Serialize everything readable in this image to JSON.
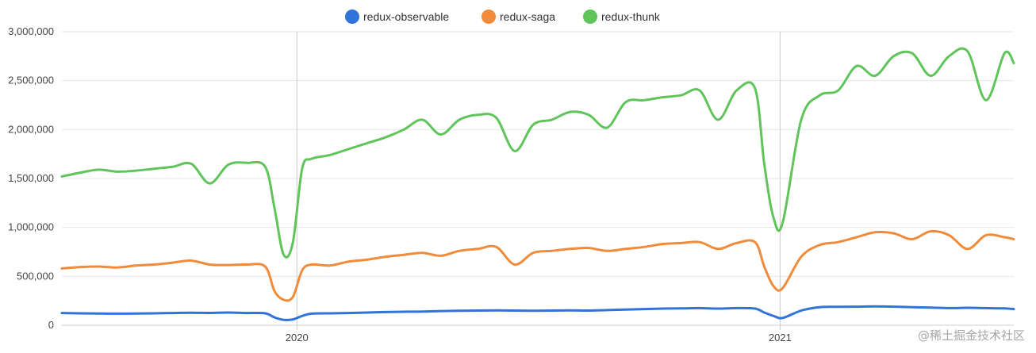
{
  "chart_data": {
    "type": "line",
    "title": "",
    "xlabel": "",
    "ylabel": "",
    "ylim": [
      0,
      3000000
    ],
    "yticks": [
      0,
      500000,
      1000000,
      1500000,
      2000000,
      2500000,
      3000000
    ],
    "ytick_labels": [
      "0",
      "500,000",
      "1,000,000",
      "1,500,000",
      "2,000,000",
      "2,500,000",
      "3,000,000"
    ],
    "xlim": [
      "2019-07-07",
      "2021-06-27"
    ],
    "xticks": [
      {
        "date": "2020-01-01",
        "label": "2020"
      },
      {
        "date": "2021-01-01",
        "label": "2021"
      }
    ],
    "grid": true,
    "legend_position": "top-center",
    "x": [
      "2019-07-07",
      "2019-07-21",
      "2019-08-04",
      "2019-08-18",
      "2019-09-01",
      "2019-09-15",
      "2019-09-29",
      "2019-10-13",
      "2019-10-27",
      "2019-11-10",
      "2019-11-24",
      "2019-12-08",
      "2019-12-15",
      "2019-12-22",
      "2019-12-29",
      "2020-01-05",
      "2020-01-12",
      "2020-01-26",
      "2020-02-09",
      "2020-02-23",
      "2020-03-08",
      "2020-03-22",
      "2020-04-05",
      "2020-04-19",
      "2020-05-03",
      "2020-05-17",
      "2020-05-31",
      "2020-06-14",
      "2020-06-28",
      "2020-07-12",
      "2020-07-26",
      "2020-08-09",
      "2020-08-23",
      "2020-09-06",
      "2020-09-20",
      "2020-10-04",
      "2020-10-18",
      "2020-11-01",
      "2020-11-15",
      "2020-11-29",
      "2020-12-13",
      "2020-12-20",
      "2020-12-27",
      "2021-01-03",
      "2021-01-17",
      "2021-01-31",
      "2021-02-14",
      "2021-02-28",
      "2021-03-14",
      "2021-03-28",
      "2021-04-11",
      "2021-04-25",
      "2021-05-09",
      "2021-05-23",
      "2021-06-06",
      "2021-06-20",
      "2021-06-27"
    ],
    "series": [
      {
        "name": "redux-observable",
        "color": "#3074d9",
        "values": [
          125000,
          122000,
          120000,
          118000,
          120000,
          122000,
          125000,
          128000,
          126000,
          130000,
          125000,
          122000,
          80000,
          55000,
          60000,
          95000,
          118000,
          122000,
          125000,
          130000,
          135000,
          138000,
          140000,
          145000,
          148000,
          150000,
          152000,
          150000,
          148000,
          150000,
          152000,
          150000,
          155000,
          160000,
          165000,
          170000,
          172000,
          175000,
          170000,
          175000,
          170000,
          130000,
          95000,
          75000,
          150000,
          185000,
          188000,
          190000,
          192000,
          190000,
          185000,
          180000,
          175000,
          178000,
          175000,
          172000,
          165000
        ]
      },
      {
        "name": "redux-saga",
        "color": "#ef8b3a",
        "values": [
          580000,
          595000,
          600000,
          590000,
          610000,
          620000,
          640000,
          660000,
          620000,
          615000,
          620000,
          600000,
          350000,
          260000,
          290000,
          560000,
          620000,
          610000,
          650000,
          670000,
          700000,
          720000,
          740000,
          710000,
          760000,
          780000,
          800000,
          620000,
          740000,
          760000,
          780000,
          790000,
          760000,
          780000,
          800000,
          830000,
          840000,
          850000,
          780000,
          840000,
          850000,
          600000,
          400000,
          380000,
          700000,
          820000,
          850000,
          900000,
          950000,
          940000,
          880000,
          960000,
          920000,
          780000,
          920000,
          900000,
          880000
        ]
      },
      {
        "name": "redux-thunk",
        "color": "#5fc45a",
        "values": [
          1520000,
          1560000,
          1590000,
          1570000,
          1580000,
          1600000,
          1620000,
          1650000,
          1450000,
          1640000,
          1660000,
          1620000,
          1200000,
          720000,
          850000,
          1600000,
          1700000,
          1740000,
          1800000,
          1860000,
          1920000,
          2000000,
          2100000,
          1950000,
          2100000,
          2150000,
          2120000,
          1780000,
          2050000,
          2100000,
          2180000,
          2150000,
          2020000,
          2280000,
          2300000,
          2330000,
          2350000,
          2400000,
          2100000,
          2400000,
          2420000,
          1650000,
          1100000,
          1050000,
          2100000,
          2350000,
          2400000,
          2650000,
          2550000,
          2750000,
          2780000,
          2550000,
          2750000,
          2800000,
          2300000,
          2780000,
          2680000
        ]
      }
    ]
  },
  "watermark": "@稀土掘金技术社区"
}
